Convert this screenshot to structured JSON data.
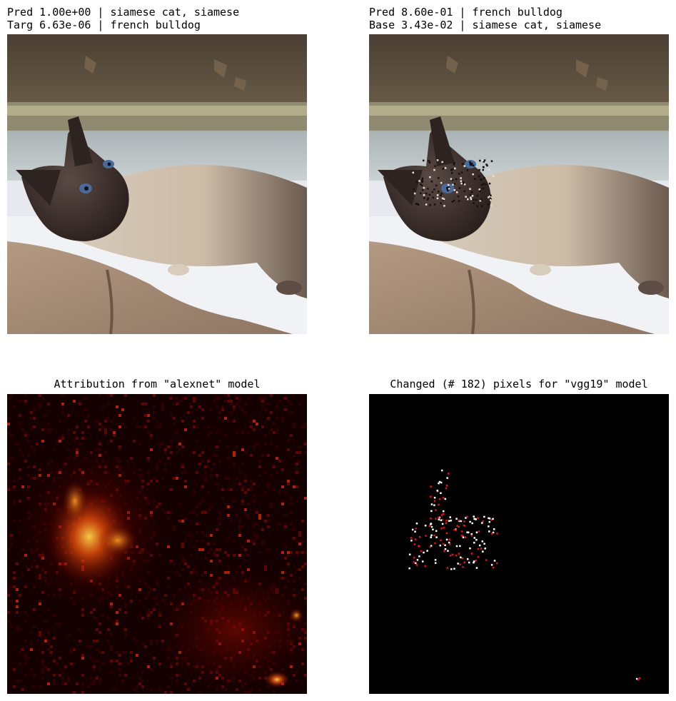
{
  "panels": {
    "original": {
      "line1": "Pred 1.00e+00 | siamese cat, siamese",
      "line2": "Targ 6.63e-06 | french bulldog"
    },
    "adversarial": {
      "line1": "Pred 8.60e-01 | french bulldog",
      "line2": "Base 3.43e-02 | siamese cat, siamese"
    },
    "attribution": {
      "title": "Attribution from \"alexnet\" model"
    },
    "changed": {
      "title": "Changed (# 182) pixels for \"vgg19\" model"
    }
  },
  "colors": {
    "heatmap_bg": "#140000",
    "heatmap_hot": "#ffd24a",
    "changed_white": "#ffffff",
    "changed_red": "#e81010"
  }
}
